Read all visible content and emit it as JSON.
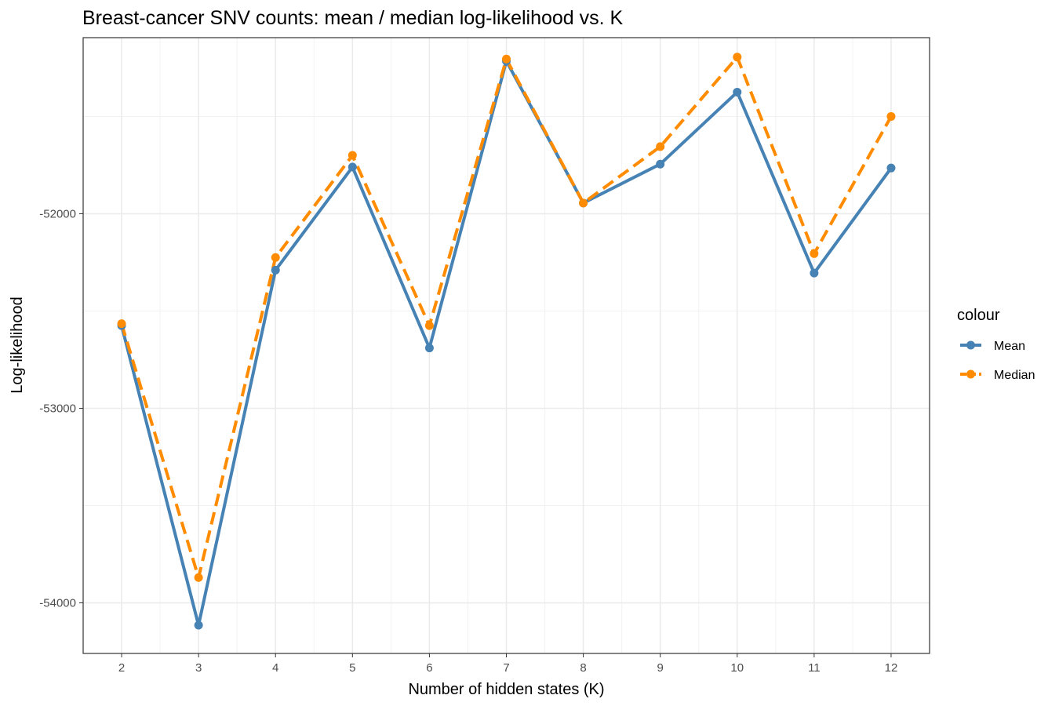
{
  "chart_data": {
    "type": "line",
    "title": "Breast-cancer SNV counts: mean / median log-likelihood vs. K",
    "xlabel": "Number of hidden states (K)",
    "ylabel": "Log-likelihood",
    "x": [
      2,
      3,
      4,
      5,
      6,
      7,
      8,
      9,
      10,
      11,
      12
    ],
    "xlim": [
      1.5,
      12.5
    ],
    "ylim": [
      -54260,
      -51095
    ],
    "yticks": [
      -52000,
      -53000,
      -54000
    ],
    "ytick_labels": [
      "-52000",
      "-53000",
      "-54000"
    ],
    "series": [
      {
        "name": "Mean",
        "values": [
          -52575,
          -54115,
          -52290,
          -51760,
          -52690,
          -51215,
          -51945,
          -51745,
          -51375,
          -52305,
          -51765
        ],
        "color": "#4682b4",
        "dash": "solid"
      },
      {
        "name": "Median",
        "values": [
          -52565,
          -53870,
          -52225,
          -51700,
          -52575,
          -51205,
          -51945,
          -51655,
          -51195,
          -52205,
          -51500
        ],
        "color": "#ff8c00",
        "dash": "dashed"
      }
    ],
    "grid": true,
    "legend": {
      "title": "colour",
      "placement": "right"
    }
  }
}
